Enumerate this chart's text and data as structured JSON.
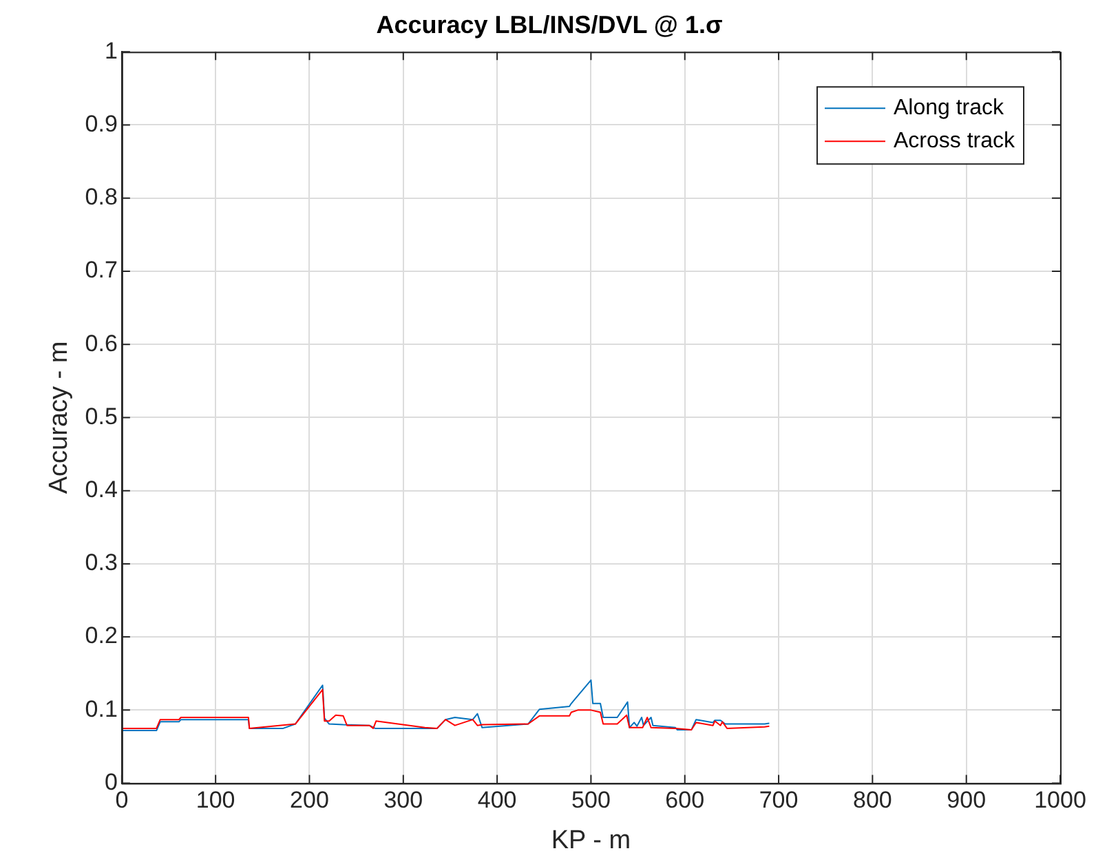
{
  "chart_data": {
    "type": "line",
    "title": "Accuracy LBL/INS/DVL @ 1.σ",
    "xlabel": "KP - m",
    "ylabel": "Accuracy - m",
    "xlim": [
      0,
      1000
    ],
    "xticks": [
      0,
      100,
      200,
      300,
      400,
      500,
      600,
      700,
      800,
      900,
      1000
    ],
    "ylim": [
      0,
      1
    ],
    "yticks": [
      0,
      0.1,
      0.2,
      0.3,
      0.4,
      0.5,
      0.6,
      0.7,
      0.8,
      0.9,
      1
    ],
    "grid": true,
    "legend": "top right",
    "marker": "none",
    "line_style": "solid",
    "series": [
      {
        "name": "Along track",
        "color": "#0072bd",
        "x": [
          0,
          37,
          41,
          61,
          63,
          135,
          136,
          172,
          185,
          214,
          216,
          221,
          236,
          264,
          270,
          323,
          336,
          345,
          355,
          374,
          379,
          384,
          433,
          445,
          477,
          479,
          500,
          502,
          510,
          513,
          528,
          539,
          541,
          546,
          549,
          554,
          556,
          564,
          566,
          590,
          592,
          607,
          612,
          630,
          632,
          638,
          643,
          685,
          690
        ],
        "values": [
          0.072,
          0.072,
          0.084,
          0.084,
          0.087,
          0.087,
          0.075,
          0.075,
          0.081,
          0.134,
          0.089,
          0.081,
          0.08,
          0.079,
          0.075,
          0.075,
          0.075,
          0.087,
          0.09,
          0.087,
          0.095,
          0.076,
          0.081,
          0.101,
          0.105,
          0.109,
          0.141,
          0.109,
          0.109,
          0.09,
          0.09,
          0.111,
          0.076,
          0.083,
          0.078,
          0.09,
          0.079,
          0.09,
          0.079,
          0.076,
          0.073,
          0.073,
          0.087,
          0.083,
          0.086,
          0.086,
          0.081,
          0.081,
          0.082
        ]
      },
      {
        "name": "Across track",
        "color": "#ff0000",
        "x": [
          0,
          37,
          41,
          61,
          63,
          135,
          136,
          185,
          214,
          216,
          221,
          228,
          236,
          240,
          264,
          268,
          271,
          323,
          336,
          345,
          355,
          374,
          379,
          384,
          433,
          445,
          477,
          479,
          486,
          500,
          510,
          513,
          528,
          538,
          541,
          555,
          560,
          564,
          590,
          607,
          612,
          630,
          632,
          638,
          640,
          645,
          685,
          690
        ],
        "values": [
          0.075,
          0.075,
          0.087,
          0.087,
          0.09,
          0.09,
          0.075,
          0.081,
          0.128,
          0.085,
          0.085,
          0.093,
          0.092,
          0.079,
          0.079,
          0.075,
          0.085,
          0.076,
          0.075,
          0.087,
          0.079,
          0.087,
          0.079,
          0.08,
          0.081,
          0.092,
          0.092,
          0.097,
          0.1,
          0.1,
          0.097,
          0.081,
          0.081,
          0.093,
          0.076,
          0.076,
          0.09,
          0.076,
          0.075,
          0.073,
          0.083,
          0.079,
          0.085,
          0.079,
          0.084,
          0.075,
          0.077,
          0.078
        ]
      }
    ]
  }
}
